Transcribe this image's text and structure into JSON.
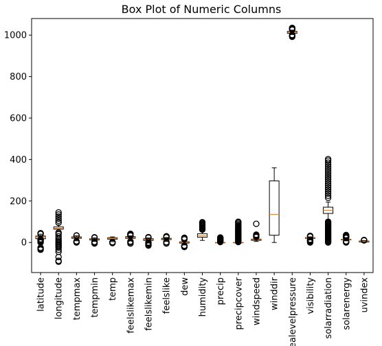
{
  "chart_data": {
    "type": "box",
    "title": "Box Plot of Numeric Columns",
    "xlabel": "",
    "ylabel": "",
    "ylim": [
      -145,
      1080
    ],
    "yticks": [
      0,
      200,
      400,
      600,
      800,
      1000
    ],
    "grid": false,
    "legend": "none",
    "colors": {
      "box": "#000000",
      "median": "#ff7f0e",
      "flier": "#000000",
      "background": "#ffffff"
    },
    "series": [
      {
        "name": "latitude",
        "whislo": 17,
        "q1": 18,
        "med": 27,
        "q3": 31,
        "whishi": 40,
        "fliers": [
          -35,
          -33,
          -30,
          -25,
          0,
          3,
          6,
          9,
          12,
          13,
          14,
          15,
          16,
          41,
          42,
          43,
          44,
          45
        ]
      },
      {
        "name": "longitude",
        "whislo": 55,
        "q1": 64,
        "med": 68,
        "q3": 75,
        "whishi": 85,
        "fliers": [
          -93,
          -88,
          -70,
          -45,
          -35,
          -25,
          -20,
          -15,
          -10,
          -5,
          0,
          5,
          12,
          20,
          30,
          40,
          48,
          95,
          105,
          115,
          125,
          135,
          145
        ]
      },
      {
        "name": "tempmax",
        "whislo": 8,
        "q1": 20,
        "med": 24,
        "q3": 27,
        "whishi": 32,
        "fliers": [
          0,
          2,
          4,
          6,
          33,
          34
        ]
      },
      {
        "name": "tempmin",
        "whislo": 5,
        "q1": 12,
        "med": 16,
        "q3": 18,
        "whishi": 22,
        "fliers": [
          -5,
          -3,
          0,
          2,
          3,
          23,
          24,
          25
        ]
      },
      {
        "name": "temp",
        "whislo": 4,
        "q1": 16,
        "med": 20,
        "q3": 23,
        "whishi": 27,
        "fliers": [
          -3,
          0,
          2
        ]
      },
      {
        "name": "feelslikemax",
        "whislo": 10,
        "q1": 20,
        "med": 24,
        "q3": 28,
        "whishi": 32,
        "fliers": [
          -5,
          0,
          5,
          33,
          35,
          37,
          39,
          40,
          42
        ]
      },
      {
        "name": "feelslikemin",
        "whislo": 2,
        "q1": 10,
        "med": 14,
        "q3": 18,
        "whishi": 22,
        "fliers": [
          -15,
          -12,
          -8,
          -5,
          -2,
          0,
          23,
          25,
          26
        ]
      },
      {
        "name": "feelslike",
        "whislo": 5,
        "q1": 14,
        "med": 17,
        "q3": 20,
        "whishi": 24,
        "fliers": [
          -5,
          0,
          2,
          25,
          27,
          29,
          30
        ]
      },
      {
        "name": "dew",
        "whislo": -12,
        "q1": -3,
        "med": 0,
        "q3": 3,
        "whishi": 10,
        "fliers": [
          -22,
          -20,
          -17,
          -15,
          15,
          20,
          23
        ]
      },
      {
        "name": "humidity",
        "whislo": 10,
        "q1": 25,
        "med": 32,
        "q3": 42,
        "whishi": 58,
        "fliers": [
          62,
          66,
          70,
          74,
          78,
          82,
          86,
          90,
          94,
          98
        ]
      },
      {
        "name": "precip",
        "whislo": 0,
        "q1": 0,
        "med": 0,
        "q3": 0,
        "whishi": 0,
        "fliers": [
          2,
          4,
          6,
          8,
          10,
          12,
          14,
          16,
          18,
          20,
          22,
          24
        ]
      },
      {
        "name": "precipcover",
        "whislo": 0,
        "q1": 0,
        "med": 0,
        "q3": 0,
        "whishi": 0,
        "fliers": [
          2,
          5,
          8,
          11,
          14,
          17,
          20,
          23,
          26,
          29,
          32,
          35,
          38,
          41,
          44,
          47,
          50,
          53,
          56,
          59,
          62,
          65,
          68,
          72,
          76,
          80,
          84,
          90,
          96,
          100
        ]
      },
      {
        "name": "windspeed",
        "whislo": 5,
        "q1": 10,
        "med": 13,
        "q3": 16,
        "whishi": 24,
        "fliers": [
          26,
          29,
          32,
          35,
          38,
          90
        ]
      },
      {
        "name": "winddir",
        "whislo": 0,
        "q1": 35,
        "med": 135,
        "q3": 297,
        "whishi": 360,
        "fliers": []
      },
      {
        "name": "sealevelpressure",
        "whislo": 1003,
        "q1": 1009,
        "med": 1013,
        "q3": 1018,
        "whishi": 1024,
        "fliers": [
          992,
          995,
          998,
          1001,
          1026,
          1029,
          1032,
          1035
        ]
      },
      {
        "name": "visibility",
        "whislo": 15,
        "q1": 20,
        "med": 23,
        "q3": 24,
        "whishi": 27,
        "fliers": [
          0,
          2,
          4,
          6,
          8,
          10,
          12,
          14,
          28,
          29,
          30,
          31,
          32
        ]
      },
      {
        "name": "solarradiation",
        "whislo": 110,
        "q1": 140,
        "med": 155,
        "q3": 170,
        "whishi": 195,
        "fliers": [
          0,
          4,
          8,
          12,
          16,
          20,
          24,
          28,
          32,
          36,
          40,
          44,
          48,
          52,
          56,
          60,
          64,
          68,
          72,
          76,
          80,
          84,
          88,
          92,
          96,
          100,
          215,
          225,
          235,
          245,
          255,
          265,
          275,
          285,
          295,
          305,
          315,
          325,
          335,
          345,
          355,
          365,
          375,
          385,
          395,
          402
        ]
      },
      {
        "name": "solarenergy",
        "whislo": 8,
        "q1": 12,
        "med": 13,
        "q3": 15,
        "whishi": 20,
        "fliers": [
          0,
          2,
          4,
          6,
          22,
          24,
          26,
          28,
          30,
          32,
          34,
          36
        ]
      },
      {
        "name": "uvindex",
        "whislo": 0,
        "q1": 2,
        "med": 5,
        "q3": 7,
        "whishi": 9,
        "fliers": [
          10,
          11,
          12
        ]
      }
    ]
  }
}
